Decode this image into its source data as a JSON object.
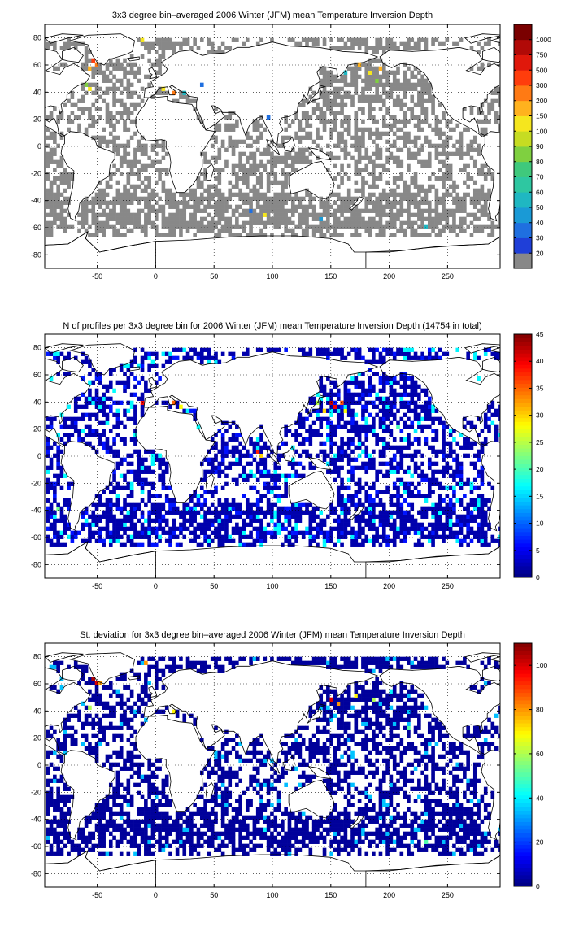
{
  "figure": {
    "background": "#ffffff"
  },
  "chart_data": [
    {
      "type": "heatmap",
      "title": "3x3 degree bin–averaged 2006 Winter (JFM) mean Temperature Inversion Depth",
      "xlim": [
        -95,
        295
      ],
      "ylim": [
        -90,
        90
      ],
      "x_ticks": [
        -50,
        0,
        50,
        100,
        150,
        200,
        250
      ],
      "y_ticks": [
        80,
        60,
        40,
        20,
        0,
        -20,
        -40,
        -60,
        -80
      ],
      "grid": true,
      "colorbar": {
        "scale": "categorical",
        "labels": [
          "20",
          "30",
          "40",
          "50",
          "60",
          "70",
          "80",
          "90",
          "100",
          "150",
          "200",
          "300",
          "500",
          "750",
          "1000"
        ],
        "colors": [
          "#888888",
          "#1f3fd8",
          "#1f6fe0",
          "#1a9ad6",
          "#1fb7c2",
          "#2ec7a1",
          "#3fc97c",
          "#7fd040",
          "#c6dc22",
          "#f5e61e",
          "#ffb21e",
          "#ff7a14",
          "#ff3d0c",
          "#e0180b",
          "#b10a07",
          "#7a0000"
        ]
      },
      "base_bin_value": 20,
      "base_bin_color": "#888888",
      "highlights": [
        {
          "lon": -55,
          "lat": 62,
          "value": 500
        },
        {
          "lon": -52,
          "lat": 59,
          "value": 300
        },
        {
          "lon": -58,
          "lat": 56,
          "value": 200
        },
        {
          "lon": -50,
          "lat": 56,
          "value": 150
        },
        {
          "lon": -61,
          "lat": 44,
          "value": 90
        },
        {
          "lon": -58,
          "lat": 41,
          "value": 150
        },
        {
          "lon": -13,
          "lat": 77,
          "value": 150
        },
        {
          "lon": 5,
          "lat": 41,
          "value": 150
        },
        {
          "lon": 14,
          "lat": 38,
          "value": 300
        },
        {
          "lon": 23,
          "lat": 38,
          "value": 60
        },
        {
          "lon": 38,
          "lat": 44,
          "value": 40
        },
        {
          "lon": -37,
          "lat": -73,
          "value": 200
        },
        {
          "lon": 150,
          "lat": 47,
          "value": 100
        },
        {
          "lon": 161,
          "lat": 53,
          "value": 60
        },
        {
          "lon": 173,
          "lat": 59,
          "value": 200
        },
        {
          "lon": 182,
          "lat": 53,
          "value": 150
        },
        {
          "lon": 191,
          "lat": 56,
          "value": 200
        },
        {
          "lon": 188,
          "lat": 47,
          "value": 90
        },
        {
          "lon": 92,
          "lat": -52,
          "value": 150
        },
        {
          "lon": 80,
          "lat": -49,
          "value": 40
        },
        {
          "lon": 230,
          "lat": -61,
          "value": 60
        },
        {
          "lon": 140,
          "lat": -55,
          "value": 50
        },
        {
          "lon": 95,
          "lat": 20,
          "value": 40
        }
      ]
    },
    {
      "type": "heatmap",
      "title": "N of profiles per 3x3 degree bin for 2006 Winter (JFM) mean Temperature Inversion Depth  (14754 in total)",
      "total_profiles": 14754,
      "xlim": [
        -95,
        295
      ],
      "ylim": [
        -90,
        90
      ],
      "x_ticks": [
        -50,
        0,
        50,
        100,
        150,
        200,
        250
      ],
      "y_ticks": [
        80,
        60,
        40,
        20,
        0,
        -20,
        -40,
        -60,
        -80
      ],
      "grid": true,
      "colorbar": {
        "scale": "linear",
        "min": 0,
        "max": 45,
        "ticks": [
          0,
          5,
          10,
          15,
          20,
          25,
          30,
          35,
          40,
          45
        ],
        "colormap": "jet"
      },
      "base_bin_value": 2,
      "highlights": [
        {
          "lon": 149,
          "lat": 38,
          "value": 42
        },
        {
          "lon": 152,
          "lat": 35,
          "value": 40
        },
        {
          "lon": 158,
          "lat": 38,
          "value": 36
        },
        {
          "lon": 143,
          "lat": 32,
          "value": 30
        },
        {
          "lon": 161,
          "lat": 32,
          "value": 28
        },
        {
          "lon": 14,
          "lat": 38,
          "value": 35
        },
        {
          "lon": -13,
          "lat": 38,
          "value": 40
        },
        {
          "lon": 86,
          "lat": 2,
          "value": 38
        },
        {
          "lon": 89,
          "lat": -1,
          "value": 30
        },
        {
          "lon": 219,
          "lat": -37,
          "value": 25
        },
        {
          "lon": 206,
          "lat": 20,
          "value": 20
        },
        {
          "lon": 179,
          "lat": 26,
          "value": 18
        },
        {
          "lon": -85,
          "lat": -40,
          "value": 22
        },
        {
          "lon": 200,
          "lat": -46,
          "value": 15
        },
        {
          "lon": 137,
          "lat": 38,
          "value": 25
        },
        {
          "lon": 20,
          "lat": 35,
          "value": 28
        }
      ]
    },
    {
      "type": "heatmap",
      "title": "St. deviation for 3x3 degree bin–averaged 2006 Winter (JFM) mean Temperature Inversion Depth",
      "xlim": [
        -95,
        295
      ],
      "ylim": [
        -90,
        90
      ],
      "x_ticks": [
        -50,
        0,
        50,
        100,
        150,
        200,
        250
      ],
      "y_ticks": [
        80,
        60,
        40,
        20,
        0,
        -20,
        -40,
        -60,
        -80
      ],
      "grid": true,
      "colorbar": {
        "scale": "linear",
        "min": 0,
        "max": 110,
        "ticks": [
          0,
          20,
          40,
          60,
          80,
          100
        ],
        "colormap": "jet"
      },
      "base_bin_value": 3,
      "highlights": [
        {
          "lon": -55,
          "lat": 62,
          "value": 105
        },
        {
          "lon": -52,
          "lat": 59,
          "value": 100
        },
        {
          "lon": -49,
          "lat": 59,
          "value": 80
        },
        {
          "lon": -58,
          "lat": 41,
          "value": 60
        },
        {
          "lon": -37,
          "lat": -73,
          "value": 100
        },
        {
          "lon": 149,
          "lat": 47,
          "value": 100
        },
        {
          "lon": 155,
          "lat": 44,
          "value": 80
        },
        {
          "lon": 170,
          "lat": 50,
          "value": 70
        },
        {
          "lon": 185,
          "lat": 47,
          "value": 60
        },
        {
          "lon": 200,
          "lat": 53,
          "value": 40
        },
        {
          "lon": 14,
          "lat": 38,
          "value": 70
        },
        {
          "lon": -10,
          "lat": 74,
          "value": 80
        },
        {
          "lon": 230,
          "lat": -58,
          "value": 50
        },
        {
          "lon": 92,
          "lat": -49,
          "value": 40
        },
        {
          "lon": 215,
          "lat": 26,
          "value": 50
        },
        {
          "lon": 164,
          "lat": 17,
          "value": 30
        }
      ]
    }
  ]
}
